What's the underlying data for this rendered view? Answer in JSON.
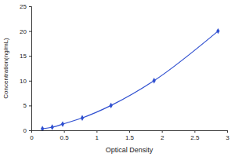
{
  "chart_data": {
    "type": "line",
    "x": [
      0.17,
      0.32,
      0.48,
      0.78,
      1.22,
      1.88,
      2.86
    ],
    "values": [
      0.31,
      0.63,
      1.25,
      2.5,
      5,
      10,
      20
    ],
    "color": "#2f4fd0",
    "marker": "diamond",
    "xlabel": "Optical Density",
    "ylabel": "Concentration(ng/mL)",
    "xlim": [
      0,
      3
    ],
    "ylim": [
      0,
      25
    ],
    "xticks": [
      0,
      0.5,
      1,
      1.5,
      2,
      2.5,
      3
    ],
    "yticks": [
      0,
      5,
      10,
      15,
      20,
      25
    ],
    "grid": false
  }
}
